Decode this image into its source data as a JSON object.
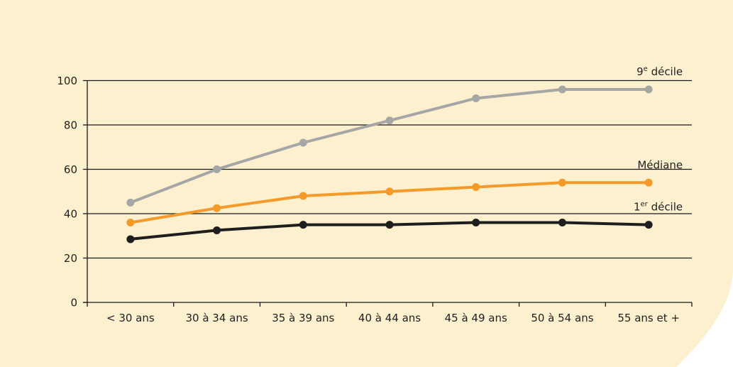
{
  "colors": {
    "background": "#fdf0cf",
    "gridline": "#1a1a1a",
    "axis": "#1a1a1a"
  },
  "chart_data": {
    "type": "line",
    "categories": [
      "< 30 ans",
      "30 à 34 ans",
      "35 à 39 ans",
      "40 à 44 ans",
      "45 à 49 ans",
      "50 à 54 ans",
      "55 ans et +"
    ],
    "ylim": [
      0,
      100
    ],
    "yticks": [
      0,
      20,
      40,
      60,
      80,
      100
    ],
    "grid": true,
    "series": [
      {
        "key": "ninth",
        "label_base": "9",
        "label_sup": "e",
        "label_rest": " décile",
        "color": "#a6a6a6",
        "values": [
          45,
          60,
          72,
          82,
          92,
          96,
          96
        ]
      },
      {
        "key": "median",
        "label_base": "Médiane",
        "label_sup": "",
        "label_rest": "",
        "color": "#f39a2a",
        "values": [
          36,
          42.5,
          48,
          50,
          52,
          54,
          54
        ]
      },
      {
        "key": "first",
        "label_base": "1",
        "label_sup": "er",
        "label_rest": " décile",
        "color": "#1e1e1e",
        "values": [
          28.5,
          32.5,
          35,
          35,
          36,
          36,
          35
        ]
      }
    ]
  }
}
